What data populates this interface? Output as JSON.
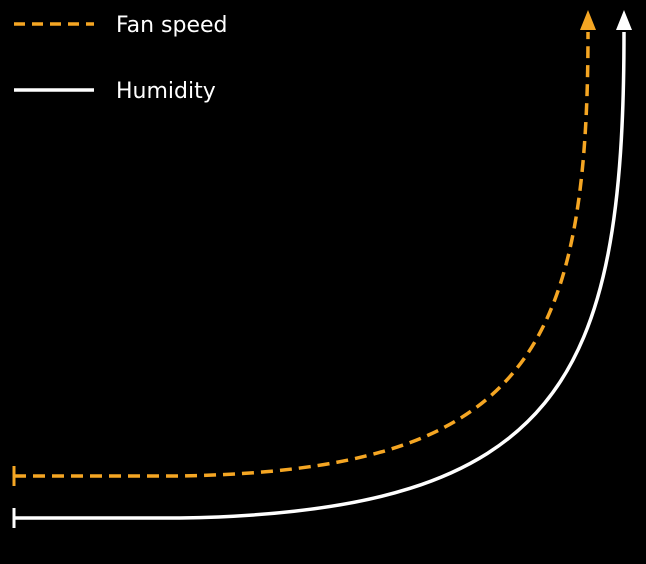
{
  "legend": {
    "fan_speed_label": "Fan speed",
    "humidity_label": "Humidity"
  },
  "series": [
    {
      "name": "Fan speed",
      "color": "#f5a623",
      "line_style": "dashed"
    },
    {
      "name": "Humidity",
      "color": "#ffffff",
      "line_style": "solid"
    }
  ],
  "colors": {
    "background": "#000000",
    "fan_speed": "#f5a623",
    "humidity": "#ffffff"
  }
}
